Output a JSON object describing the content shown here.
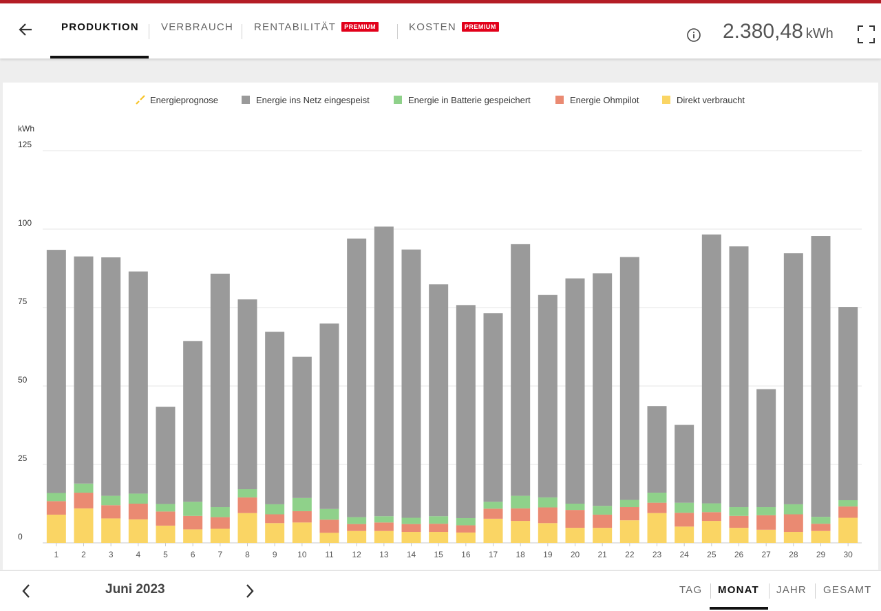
{
  "header": {
    "tabs": [
      {
        "label": "PRODUKTION",
        "active": true
      },
      {
        "label": "VERBRAUCH",
        "active": false
      },
      {
        "label": "RENTABILITÄT",
        "active": false,
        "badge": "PREMIUM"
      },
      {
        "label": "KOSTEN",
        "active": false,
        "badge": "PREMIUM"
      }
    ],
    "total_value": "2.380,48",
    "total_unit": "kWh",
    "icons": {
      "back": "arrow-left-icon",
      "info": "info-icon",
      "fullscreen": "fullscreen-icon"
    }
  },
  "colors": {
    "accent": "#b41d25",
    "badge": "#e2001a",
    "grid_energy": "#9a9a9a",
    "battery": "#8fd18a",
    "ohmpilot": "#ea8a72",
    "direct": "#fad564",
    "forecast": "#f7c326"
  },
  "chart_data": {
    "type": "bar",
    "stacked": true,
    "title": "",
    "ylabel": "kWh",
    "xlabel": "",
    "ylim": [
      0,
      125
    ],
    "yticks": [
      0,
      25,
      50,
      75,
      100,
      125
    ],
    "grid": true,
    "legend_position": "top",
    "legend": [
      "Energieprognose",
      "Energie ins Netz eingespeist",
      "Energie in Batterie gespeichert",
      "Energie Ohmpilot",
      "Direkt verbraucht"
    ],
    "categories": [
      "1",
      "2",
      "3",
      "4",
      "5",
      "6",
      "7",
      "8",
      "9",
      "10",
      "11",
      "12",
      "13",
      "14",
      "15",
      "16",
      "17",
      "18",
      "19",
      "20",
      "21",
      "22",
      "23",
      "24",
      "25",
      "26",
      "27",
      "28",
      "29",
      "30"
    ],
    "series": [
      {
        "name": "Direkt verbraucht",
        "color": "#fad564",
        "values": [
          9,
          11,
          7.8,
          7.5,
          5.5,
          4.3,
          4.5,
          9.5,
          6.3,
          6.5,
          3.2,
          3.8,
          3.8,
          3.5,
          3.5,
          3.3,
          7.7,
          7,
          6.3,
          4.8,
          4.8,
          7.2,
          9.5,
          5.2,
          7,
          4.8,
          4.2,
          3.5,
          3.8,
          8
        ]
      },
      {
        "name": "Energie Ohmpilot",
        "color": "#ea8a72",
        "values": [
          4.3,
          5,
          4.2,
          5,
          4.5,
          4.3,
          3.7,
          5,
          2.8,
          3.6,
          4.2,
          2.2,
          2.7,
          2.5,
          2.6,
          2.3,
          3.2,
          4,
          5,
          5.7,
          4.2,
          4.2,
          3.3,
          4.4,
          2.8,
          3.8,
          4.6,
          5.6,
          2.3,
          3.6
        ]
      },
      {
        "name": "Energie in Batterie gespeichert",
        "color": "#8fd18a",
        "values": [
          2.6,
          2.9,
          3,
          3.2,
          2.4,
          4.5,
          3.2,
          2.6,
          3.2,
          4.2,
          3.4,
          2.2,
          2,
          2,
          2.4,
          2.3,
          2.2,
          4,
          3.2,
          2,
          2.8,
          2.3,
          3.2,
          3.2,
          2.8,
          2.8,
          2.6,
          3.2,
          2.2,
          2
        ]
      },
      {
        "name": "Energie ins Netz eingespeist",
        "color": "#9a9a9a",
        "values": [
          77.5,
          72.4,
          76,
          70.8,
          31,
          51.2,
          74.4,
          60.5,
          55,
          45,
          59.1,
          88.8,
          92.3,
          85.5,
          73.9,
          67.9,
          60.1,
          80.2,
          64.5,
          71.8,
          74.1,
          77.4,
          27.6,
          24.8,
          85.7,
          83.1,
          37.6,
          80,
          89.5,
          61.6
        ]
      }
    ]
  },
  "footer": {
    "period": "Juni 2023",
    "ranges": [
      {
        "label": "TAG",
        "active": false
      },
      {
        "label": "MONAT",
        "active": true
      },
      {
        "label": "JAHR",
        "active": false
      },
      {
        "label": "GESAMT",
        "active": false
      }
    ],
    "icons": {
      "prev": "chevron-left-icon",
      "next": "chevron-right-icon"
    }
  }
}
